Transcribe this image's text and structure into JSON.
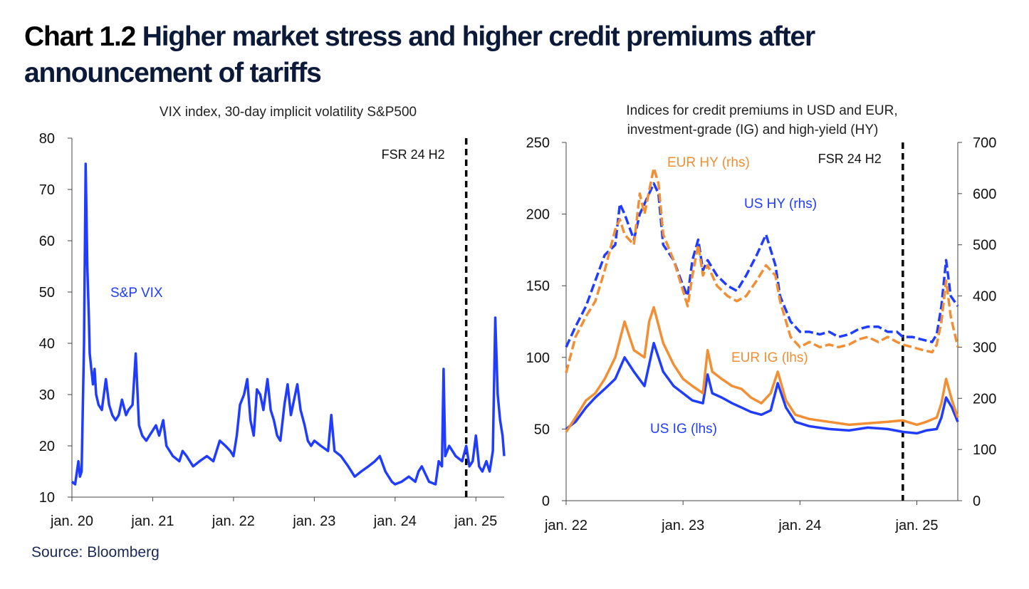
{
  "title": {
    "number": "Chart 1.2",
    "text": "Higher market stress and higher credit premiums after announcement of tariffs"
  },
  "source": "Source: Bloomberg",
  "chart_data": [
    {
      "type": "line",
      "title": "VIX index, 30-day implicit volatility S&P500",
      "ylim": [
        10,
        80
      ],
      "yticks": [
        10,
        20,
        30,
        40,
        50,
        60,
        70,
        80
      ],
      "xlim": [
        2020.0,
        2025.35
      ],
      "xticks": [
        {
          "label": "jan. 20",
          "value": 2020
        },
        {
          "label": "jan. 21",
          "value": 2021
        },
        {
          "label": "jan. 22",
          "value": 2022
        },
        {
          "label": "jan. 23",
          "value": 2023
        },
        {
          "label": "jan. 24",
          "value": 2024
        },
        {
          "label": "jan. 25",
          "value": 2025
        }
      ],
      "vline": {
        "label": "FSR 24 H2",
        "x": 2024.88
      },
      "series": [
        {
          "name": "S&P VIX",
          "color": "#1f3cff",
          "x": [
            2020.0,
            2020.04,
            2020.08,
            2020.1,
            2020.12,
            2020.15,
            2020.17,
            2020.19,
            2020.21,
            2020.22,
            2020.24,
            2020.26,
            2020.28,
            2020.3,
            2020.33,
            2020.37,
            2020.42,
            2020.46,
            2020.5,
            2020.54,
            2020.58,
            2020.62,
            2020.67,
            2020.7,
            2020.75,
            2020.79,
            2020.83,
            2020.87,
            2020.92,
            2020.96,
            2021.0,
            2021.04,
            2021.08,
            2021.13,
            2021.17,
            2021.25,
            2021.33,
            2021.37,
            2021.42,
            2021.5,
            2021.58,
            2021.67,
            2021.75,
            2021.83,
            2021.9,
            2021.96,
            2022.0,
            2022.04,
            2022.08,
            2022.13,
            2022.17,
            2022.21,
            2022.25,
            2022.29,
            2022.33,
            2022.37,
            2022.42,
            2022.46,
            2022.5,
            2022.54,
            2022.58,
            2022.63,
            2022.67,
            2022.71,
            2022.75,
            2022.79,
            2022.83,
            2022.88,
            2022.92,
            2022.96,
            2023.0,
            2023.08,
            2023.17,
            2023.21,
            2023.25,
            2023.33,
            2023.42,
            2023.5,
            2023.58,
            2023.67,
            2023.75,
            2023.81,
            2023.88,
            2023.96,
            2024.0,
            2024.08,
            2024.17,
            2024.25,
            2024.29,
            2024.33,
            2024.42,
            2024.5,
            2024.54,
            2024.58,
            2024.6,
            2024.62,
            2024.67,
            2024.75,
            2024.83,
            2024.88,
            2024.92,
            2024.96,
            2025.0,
            2025.04,
            2025.08,
            2025.13,
            2025.17,
            2025.21,
            2025.24,
            2025.27,
            2025.3,
            2025.33,
            2025.35
          ],
          "y": [
            13,
            12.5,
            17,
            14,
            15,
            40,
            75,
            55,
            45,
            38,
            35,
            32,
            35,
            30,
            28,
            27,
            33,
            28,
            26,
            25,
            26,
            29,
            26,
            27,
            28,
            38,
            24,
            22,
            21,
            22,
            23,
            24,
            22,
            25,
            20,
            18,
            17,
            19,
            18,
            16,
            17,
            18,
            17,
            21,
            20,
            19,
            18,
            22,
            28,
            30,
            33,
            25,
            22,
            31,
            30,
            27,
            33,
            27,
            25,
            22,
            21,
            28,
            32,
            26,
            29,
            32,
            27,
            24,
            21,
            20,
            21,
            20,
            19,
            26,
            19,
            18,
            16,
            14,
            15,
            16,
            17,
            18,
            15,
            13,
            12.5,
            13,
            14,
            13,
            15,
            16,
            13,
            12.5,
            17,
            16,
            35,
            18,
            20,
            18,
            17,
            20,
            16,
            17,
            22,
            16,
            15,
            17,
            15,
            19,
            45,
            30,
            25,
            22,
            18
          ]
        }
      ]
    },
    {
      "type": "line",
      "title": "Indices for credit premiums in USD and  EUR, investment-grade (IG) and high-yield (HY)",
      "ylim_left": [
        0,
        250
      ],
      "yticks_left": [
        0,
        50,
        100,
        150,
        200,
        250
      ],
      "ylim_right": [
        0,
        700
      ],
      "yticks_right": [
        0,
        100,
        200,
        300,
        400,
        500,
        600,
        700
      ],
      "xlim": [
        2022.0,
        2025.35
      ],
      "xticks": [
        {
          "label": "jan. 22",
          "value": 2022
        },
        {
          "label": "jan. 23",
          "value": 2023
        },
        {
          "label": "jan. 24",
          "value": 2024
        },
        {
          "label": "jan. 25",
          "value": 2025
        }
      ],
      "vline": {
        "label": "FSR 24 H2",
        "x": 2024.88
      },
      "series": [
        {
          "name": "US IG (lhs)",
          "axis": "left",
          "color": "#1f3cff",
          "dash": false,
          "x": [
            2022.0,
            2022.08,
            2022.17,
            2022.25,
            2022.33,
            2022.42,
            2022.5,
            2022.58,
            2022.67,
            2022.71,
            2022.75,
            2022.83,
            2022.92,
            2023.0,
            2023.08,
            2023.17,
            2023.21,
            2023.25,
            2023.33,
            2023.42,
            2023.5,
            2023.58,
            2023.67,
            2023.75,
            2023.81,
            2023.88,
            2023.96,
            2024.08,
            2024.25,
            2024.42,
            2024.58,
            2024.75,
            2024.88,
            2025.0,
            2025.08,
            2025.17,
            2025.21,
            2025.25,
            2025.3,
            2025.35
          ],
          "y": [
            50,
            55,
            65,
            72,
            78,
            85,
            100,
            90,
            80,
            95,
            110,
            90,
            80,
            75,
            70,
            68,
            88,
            75,
            72,
            68,
            65,
            62,
            60,
            63,
            82,
            65,
            55,
            52,
            50,
            49,
            51,
            50,
            48,
            47,
            49,
            50,
            58,
            72,
            65,
            55
          ]
        },
        {
          "name": "EUR IG (lhs)",
          "axis": "left",
          "color": "#f28e33",
          "dash": false,
          "x": [
            2022.0,
            2022.08,
            2022.17,
            2022.25,
            2022.33,
            2022.42,
            2022.5,
            2022.58,
            2022.67,
            2022.71,
            2022.75,
            2022.83,
            2022.92,
            2023.0,
            2023.08,
            2023.17,
            2023.21,
            2023.25,
            2023.33,
            2023.42,
            2023.5,
            2023.58,
            2023.67,
            2023.75,
            2023.81,
            2023.88,
            2023.96,
            2024.08,
            2024.25,
            2024.42,
            2024.58,
            2024.75,
            2024.88,
            2025.0,
            2025.08,
            2025.17,
            2025.21,
            2025.25,
            2025.3,
            2025.35
          ],
          "y": [
            48,
            58,
            70,
            75,
            85,
            100,
            125,
            105,
            100,
            125,
            135,
            110,
            95,
            85,
            80,
            75,
            105,
            90,
            85,
            80,
            78,
            72,
            68,
            75,
            90,
            70,
            60,
            57,
            55,
            53,
            54,
            55,
            56,
            53,
            55,
            58,
            68,
            85,
            70,
            58
          ]
        },
        {
          "name": "US HY (rhs)",
          "axis": "right",
          "color": "#1f3cff",
          "dash": true,
          "x": [
            2022.0,
            2022.08,
            2022.17,
            2022.25,
            2022.33,
            2022.42,
            2022.46,
            2022.5,
            2022.58,
            2022.63,
            2022.67,
            2022.75,
            2022.79,
            2022.83,
            2022.92,
            2023.0,
            2023.04,
            2023.08,
            2023.13,
            2023.17,
            2023.21,
            2023.29,
            2023.38,
            2023.46,
            2023.54,
            2023.63,
            2023.71,
            2023.79,
            2023.83,
            2023.92,
            2024.0,
            2024.08,
            2024.17,
            2024.25,
            2024.33,
            2024.42,
            2024.5,
            2024.58,
            2024.67,
            2024.75,
            2024.83,
            2024.88,
            2024.96,
            2025.04,
            2025.13,
            2025.17,
            2025.21,
            2025.25,
            2025.29,
            2025.35
          ],
          "y": [
            300,
            340,
            380,
            430,
            480,
            500,
            580,
            560,
            510,
            560,
            580,
            620,
            600,
            500,
            470,
            420,
            400,
            470,
            510,
            450,
            470,
            440,
            420,
            410,
            440,
            480,
            520,
            460,
            400,
            350,
            330,
            330,
            325,
            330,
            320,
            325,
            335,
            340,
            340,
            330,
            330,
            320,
            320,
            315,
            310,
            325,
            380,
            470,
            400,
            380
          ]
        },
        {
          "name": "EUR HY (rhs)",
          "axis": "right",
          "color": "#f28e33",
          "dash": true,
          "x": [
            2022.0,
            2022.08,
            2022.17,
            2022.25,
            2022.33,
            2022.42,
            2022.46,
            2022.5,
            2022.58,
            2022.63,
            2022.67,
            2022.75,
            2022.79,
            2022.83,
            2022.92,
            2023.0,
            2023.04,
            2023.08,
            2023.13,
            2023.17,
            2023.21,
            2023.29,
            2023.38,
            2023.46,
            2023.54,
            2023.63,
            2023.71,
            2023.79,
            2023.83,
            2023.92,
            2024.0,
            2024.08,
            2024.17,
            2024.25,
            2024.33,
            2024.42,
            2024.5,
            2024.58,
            2024.67,
            2024.75,
            2024.83,
            2024.88,
            2024.96,
            2025.04,
            2025.13,
            2025.17,
            2025.21,
            2025.25,
            2025.29,
            2025.35
          ],
          "y": [
            250,
            320,
            360,
            390,
            450,
            530,
            550,
            520,
            500,
            600,
            560,
            650,
            620,
            520,
            470,
            410,
            380,
            440,
            500,
            440,
            460,
            420,
            400,
            390,
            400,
            430,
            460,
            440,
            390,
            320,
            300,
            310,
            300,
            305,
            300,
            305,
            315,
            320,
            310,
            320,
            310,
            305,
            300,
            295,
            290,
            305,
            350,
            430,
            360,
            300
          ]
        }
      ],
      "legend_labels": {
        "eur_hy": "EUR HY (rhs)",
        "us_hy": "US HY (rhs)",
        "eur_ig": "EUR IG (lhs)",
        "us_ig": "US IG (lhs)"
      }
    }
  ]
}
